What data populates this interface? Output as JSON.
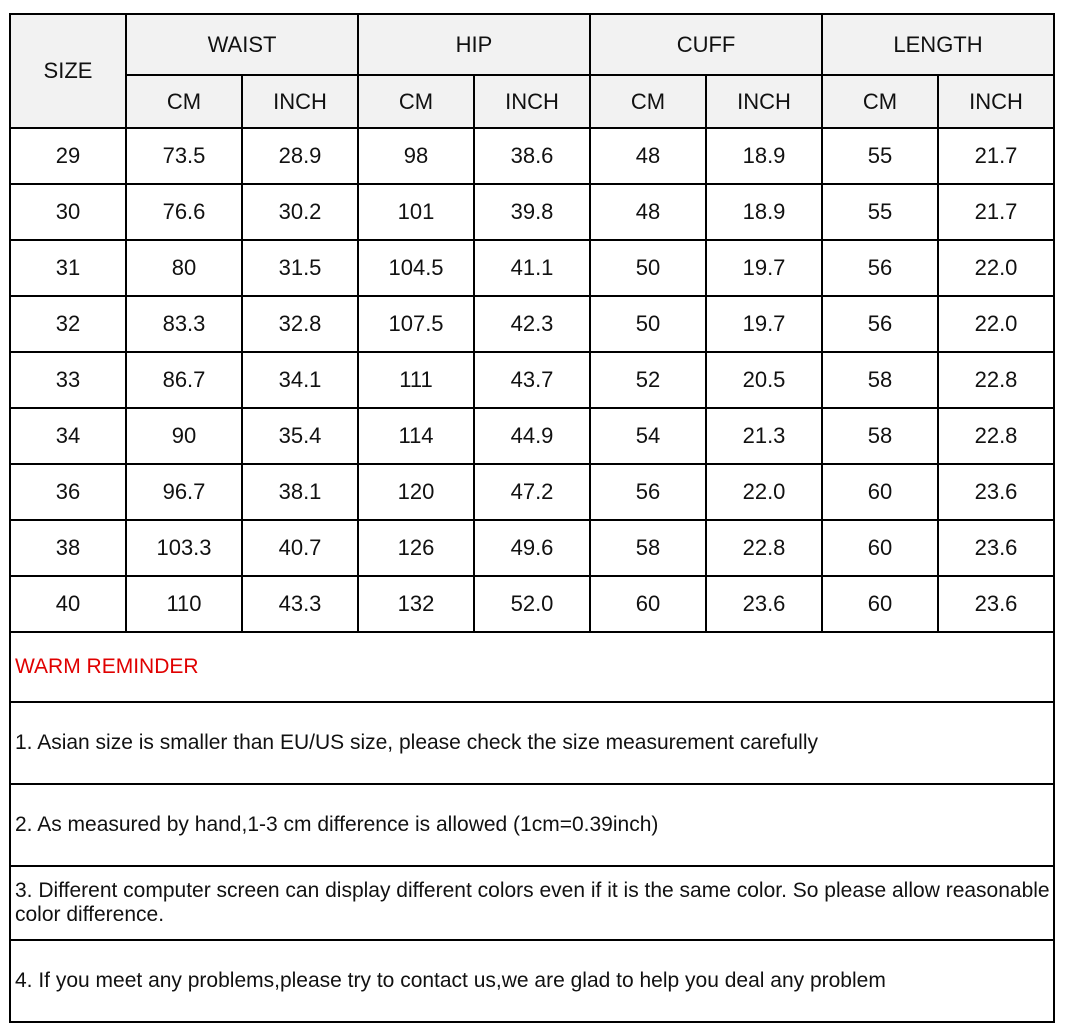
{
  "table": {
    "size_header": "SIZE",
    "groups": [
      "WAIST",
      "HIP",
      "CUFF",
      "LENGTH"
    ],
    "units": [
      "CM",
      "INCH"
    ],
    "rows": [
      [
        "29",
        "73.5",
        "28.9",
        "98",
        "38.6",
        "48",
        "18.9",
        "55",
        "21.7"
      ],
      [
        "30",
        "76.6",
        "30.2",
        "101",
        "39.8",
        "48",
        "18.9",
        "55",
        "21.7"
      ],
      [
        "31",
        "80",
        "31.5",
        "104.5",
        "41.1",
        "50",
        "19.7",
        "56",
        "22.0"
      ],
      [
        "32",
        "83.3",
        "32.8",
        "107.5",
        "42.3",
        "50",
        "19.7",
        "56",
        "22.0"
      ],
      [
        "33",
        "86.7",
        "34.1",
        "111",
        "43.7",
        "52",
        "20.5",
        "58",
        "22.8"
      ],
      [
        "34",
        "90",
        "35.4",
        "114",
        "44.9",
        "54",
        "21.3",
        "58",
        "22.8"
      ],
      [
        "36",
        "96.7",
        "38.1",
        "120",
        "47.2",
        "56",
        "22.0",
        "60",
        "23.6"
      ],
      [
        "38",
        "103.3",
        "40.7",
        "126",
        "49.6",
        "58",
        "22.8",
        "60",
        "23.6"
      ],
      [
        "40",
        "110",
        "43.3",
        "132",
        "52.0",
        "60",
        "23.6",
        "60",
        "23.6"
      ]
    ]
  },
  "reminder": {
    "title": "WARM REMINDER",
    "title_color": "#e00000",
    "items": [
      "1. Asian size is smaller than EU/US size, please check the size measurement carefully",
      "2. As measured by hand,1-3 cm difference is allowed (1cm=0.39inch)",
      "3. Different computer screen can display different colors even if it is the same color. So please allow reasonable color difference.",
      "4. If you meet any problems,please try to contact us,we are glad to help you deal any problem"
    ]
  }
}
